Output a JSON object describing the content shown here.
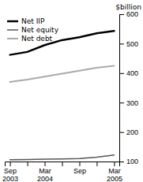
{
  "chart_data": {
    "type": "line",
    "y_label": "$billion",
    "categories": [
      "Sep\n2003",
      null,
      "Mar\n2004",
      null,
      "Sep",
      null,
      "Mar\n2005"
    ],
    "series": [
      {
        "name": "Net IIP",
        "color": "#000000",
        "values": [
          462,
          472,
          495,
          512,
          522,
          535,
          543
        ]
      },
      {
        "name": "Net equity",
        "color": "#555555",
        "values": [
          106,
          107,
          108,
          109,
          110,
          115,
          122
        ]
      },
      {
        "name": "Net debt",
        "color": "#aaaaaa",
        "values": [
          370,
          378,
          388,
          398,
          408,
          418,
          425
        ]
      }
    ],
    "ylim": [
      100,
      600
    ],
    "yticks": [
      100,
      200,
      300,
      400,
      500,
      600
    ],
    "legend": "upper left"
  }
}
